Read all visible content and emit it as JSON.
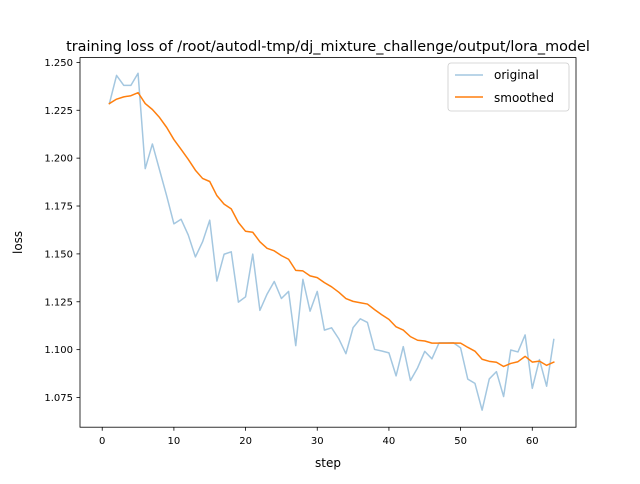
{
  "chart_data": {
    "type": "line",
    "title": "training loss of /root/autodl-tmp/dj_mixture_challenge/output/lora_model",
    "xlabel": "step",
    "ylabel": "loss",
    "xlim": [
      -3.1,
      66.1
    ],
    "ylim": [
      1.0595,
      1.2525
    ],
    "xticks": [
      0,
      10,
      20,
      30,
      40,
      50,
      60
    ],
    "yticks": [
      1.075,
      1.1,
      1.125,
      1.15,
      1.175,
      1.2,
      1.225,
      1.25
    ],
    "ytick_labels": [
      "1.075",
      "1.100",
      "1.125",
      "1.150",
      "1.175",
      "1.200",
      "1.225",
      "1.250"
    ],
    "grid": false,
    "legend_position": "top-right",
    "x": [
      1,
      2,
      3,
      4,
      5,
      6,
      7,
      8,
      9,
      10,
      11,
      12,
      13,
      14,
      15,
      16,
      17,
      18,
      19,
      20,
      21,
      22,
      23,
      24,
      25,
      26,
      27,
      28,
      29,
      30,
      31,
      32,
      33,
      34,
      35,
      36,
      37,
      38,
      39,
      40,
      41,
      42,
      43,
      44,
      45,
      46,
      47,
      48,
      49,
      50,
      51,
      52,
      53,
      54,
      55,
      56,
      57,
      58,
      59,
      60,
      61,
      62,
      63
    ],
    "series": [
      {
        "name": "original",
        "color": "#a4c7e0",
        "values": [
          1.2285,
          1.2432,
          1.238,
          1.238,
          1.2443,
          1.1945,
          1.2074,
          1.1938,
          1.1802,
          1.1657,
          1.1681,
          1.1599,
          1.1484,
          1.1563,
          1.1676,
          1.1358,
          1.1498,
          1.1511,
          1.1248,
          1.1276,
          1.1499,
          1.1205,
          1.129,
          1.1356,
          1.1267,
          1.1304,
          1.1021,
          1.1367,
          1.1201,
          1.1304,
          1.1102,
          1.1114,
          1.1057,
          1.0979,
          1.1115,
          1.1161,
          1.1142,
          1.1001,
          1.0993,
          1.0983,
          1.0863,
          1.1016,
          1.0839,
          1.0905,
          1.0991,
          1.0952,
          1.1036,
          1.1036,
          1.1036,
          1.1009,
          1.0846,
          1.0824,
          1.0684,
          1.0847,
          1.0885,
          1.0755,
          1.0998,
          1.0988,
          1.1077,
          1.0798,
          1.0948,
          1.0809,
          1.1053
        ]
      },
      {
        "name": "smoothed",
        "color": "#ff7f0e",
        "values": [
          1.2285,
          1.2308,
          1.232,
          1.2326,
          1.2342,
          1.2285,
          1.2254,
          1.2212,
          1.216,
          1.2097,
          1.2046,
          1.1994,
          1.1937,
          1.1894,
          1.1878,
          1.1804,
          1.176,
          1.1735,
          1.1664,
          1.1618,
          1.1613,
          1.1563,
          1.1529,
          1.1516,
          1.1491,
          1.1472,
          1.1414,
          1.1411,
          1.1385,
          1.1376,
          1.135,
          1.1328,
          1.13,
          1.1267,
          1.1252,
          1.1245,
          1.1238,
          1.1209,
          1.1182,
          1.1158,
          1.1119,
          1.1102,
          1.1068,
          1.1049,
          1.1045,
          1.1034,
          1.1034,
          1.1034,
          1.1035,
          1.1034,
          1.1012,
          1.0992,
          1.095,
          1.0939,
          1.0934,
          1.0912,
          1.0928,
          1.0937,
          1.0965,
          1.0935,
          1.094,
          1.0918,
          1.0935
        ]
      }
    ]
  }
}
